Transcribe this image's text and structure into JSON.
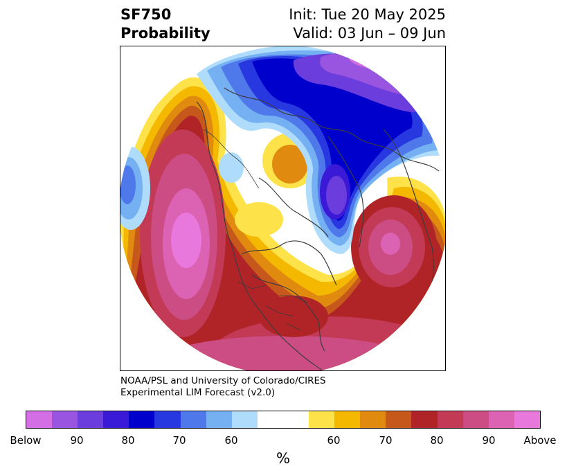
{
  "header": {
    "title_line1": "SF750",
    "title_line2": "Probability",
    "init": "Init: Tue 20 May 2025",
    "valid": "Valid: 03 Jun – 09 Jun"
  },
  "map": {
    "projection": "north-polar-stereographic",
    "coastline_color": "#3c3c3c",
    "features": [
      "coastlines",
      "country-borders",
      "state-borders"
    ]
  },
  "credit": {
    "line1": "NOAA/PSL and University of Colorado/CIRES",
    "line2": "Experimental LIM Forecast (v2.0)"
  },
  "colorbar": {
    "unit": "%",
    "colors": [
      "#d46ee4",
      "#9a55e0",
      "#6a3ddc",
      "#3a1ad6",
      "#0000cd",
      "#2838e0",
      "#4f78ea",
      "#74b0f2",
      "#aedcfa",
      "#ffffff",
      "#ffffff",
      "#fee24a",
      "#f5b800",
      "#e08a10",
      "#c6581c",
      "#b02428",
      "#c23a55",
      "#cc4c84",
      "#dc62b4",
      "#e878dc"
    ],
    "tick_labels": [
      "Below",
      "90",
      "80",
      "70",
      "60",
      "60",
      "70",
      "80",
      "90",
      "Above"
    ]
  }
}
